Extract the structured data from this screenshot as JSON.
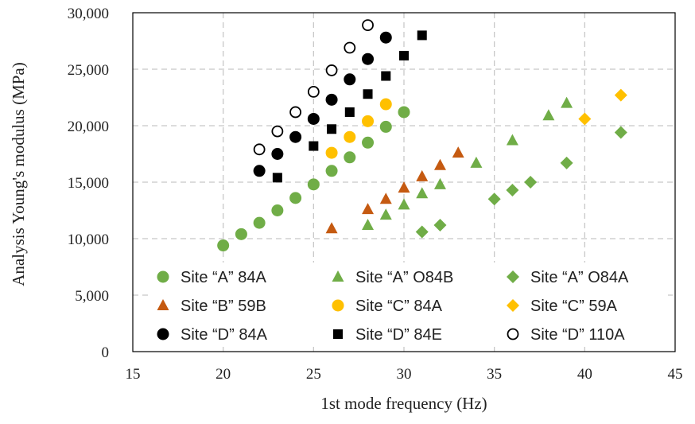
{
  "chart_data": {
    "type": "scatter",
    "title": "",
    "xlabel": "1st mode frequency (Hz)",
    "ylabel": "Analysis Young's modulus (MPa)",
    "xlim": [
      15,
      45
    ],
    "ylim": [
      0,
      30000
    ],
    "xticks": [
      15,
      20,
      25,
      30,
      35,
      40,
      45
    ],
    "yticks": [
      0,
      5000,
      10000,
      15000,
      20000,
      25000,
      30000
    ],
    "xtick_labels": [
      "15",
      "20",
      "25",
      "30",
      "35",
      "40",
      "45"
    ],
    "ytick_labels": [
      "0",
      "5,000",
      "10,000",
      "15,000",
      "20,000",
      "25,000",
      "30,000"
    ],
    "grid": "dashed",
    "legend_position": "lower-center",
    "series": [
      {
        "name": "Site “A” 84A",
        "marker": "circle",
        "color": "#70ad47",
        "x": [
          20,
          21,
          22,
          23,
          24,
          25,
          26,
          27,
          28,
          29,
          30
        ],
        "y": [
          9400,
          10400,
          11400,
          12500,
          13600,
          14800,
          16000,
          17200,
          18500,
          19900,
          21200
        ]
      },
      {
        "name": "Site “A” O84B",
        "marker": "triangle",
        "color": "#70ad47",
        "x": [
          28,
          29,
          30,
          31,
          32,
          34,
          36,
          38,
          39
        ],
        "y": [
          11200,
          12100,
          13000,
          14000,
          14800,
          16700,
          18700,
          20900,
          22000
        ]
      },
      {
        "name": "Site “A” O84A",
        "marker": "diamond",
        "color": "#70ad47",
        "x": [
          31,
          32,
          35,
          36,
          37,
          39,
          42
        ],
        "y": [
          10600,
          11200,
          13500,
          14300,
          15000,
          16700,
          19400
        ]
      },
      {
        "name": "Site “B” 59B",
        "marker": "triangle",
        "color": "#c55a11",
        "x": [
          26,
          28,
          29,
          30,
          31,
          32,
          33
        ],
        "y": [
          10900,
          12600,
          13500,
          14500,
          15500,
          16500,
          17600
        ]
      },
      {
        "name": "Site “C” 84A",
        "marker": "circle",
        "color": "#ffc000",
        "x": [
          26,
          27,
          28,
          29
        ],
        "y": [
          17600,
          19000,
          20400,
          21900
        ]
      },
      {
        "name": "Site “C” 59A",
        "marker": "diamond",
        "color": "#ffc000",
        "x": [
          40,
          42
        ],
        "y": [
          20600,
          22700
        ]
      },
      {
        "name": "Site “D” 84A",
        "marker": "circle",
        "color": "#000000",
        "x": [
          22,
          23,
          24,
          25,
          26,
          27,
          28,
          29
        ],
        "y": [
          16000,
          17500,
          19000,
          20600,
          22300,
          24100,
          25900,
          27800
        ]
      },
      {
        "name": "Site “D” 84E",
        "marker": "square",
        "color": "#000000",
        "x": [
          23,
          25,
          26,
          27,
          28,
          29,
          30,
          31
        ],
        "y": [
          15400,
          18200,
          19700,
          21200,
          22800,
          24400,
          26200,
          28000
        ]
      },
      {
        "name": "Site “D” 110A",
        "marker": "open-circle",
        "color": "#000000",
        "x": [
          22,
          23,
          24,
          25,
          26,
          27,
          28
        ],
        "y": [
          17900,
          19500,
          21200,
          23000,
          24900,
          26900,
          28900
        ]
      }
    ]
  }
}
